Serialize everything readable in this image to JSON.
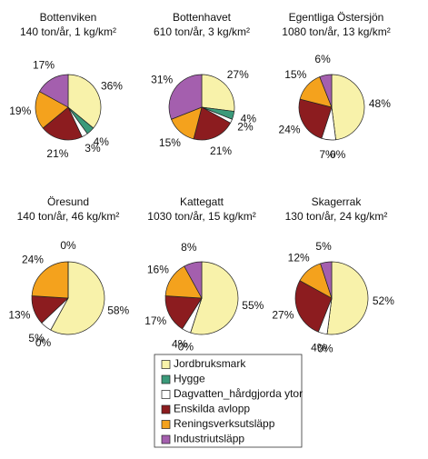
{
  "legend": {
    "categories": [
      "Jordbruksmark",
      "Hygge",
      "Dagvatten_hårdgjorda ytor",
      "Enskilda avlopp",
      "Reningsverksutsläpp",
      "Industriutsläpp"
    ],
    "colors": [
      "#f8f2aa",
      "#3b9a7a",
      "#ffffff",
      "#8c1c1f",
      "#f4a21d",
      "#a45fae"
    ]
  },
  "chart_data": [
    {
      "type": "pie",
      "title": "Bottenviken",
      "subtitle": "140 ton/år, 1 kg/km²",
      "values": [
        36,
        4,
        3,
        21,
        19,
        17
      ],
      "value_labels": [
        "36%",
        "4%",
        "3%",
        "21%",
        "19%",
        "17%"
      ]
    },
    {
      "type": "pie",
      "title": "Bottenhavet",
      "subtitle": "610 ton/år, 3 kg/km²",
      "values": [
        27,
        4,
        2,
        21,
        15,
        31
      ],
      "value_labels": [
        "27%",
        "4%",
        "2%",
        "21%",
        "15%",
        "31%"
      ]
    },
    {
      "type": "pie",
      "title": "Egentliga Östersjön",
      "subtitle": "1080 ton/år, 13 kg/km²",
      "values": [
        48,
        0,
        7,
        24,
        15,
        6
      ],
      "value_labels": [
        "48%",
        "0%",
        "7%",
        "24%",
        "15%",
        "6%"
      ]
    },
    {
      "type": "pie",
      "title": "Öresund",
      "subtitle": "140 ton/år, 46 kg/km²",
      "values": [
        58,
        0,
        5,
        13,
        24,
        0
      ],
      "value_labels": [
        "58%",
        "0%",
        "5%",
        "13%",
        "24%",
        "0%"
      ]
    },
    {
      "type": "pie",
      "title": "Kattegatt",
      "subtitle": "1030 ton/år, 15 kg/km²",
      "values": [
        55,
        0,
        4,
        17,
        16,
        8
      ],
      "value_labels": [
        "55%",
        "0%",
        "4%",
        "17%",
        "16%",
        "8%"
      ]
    },
    {
      "type": "pie",
      "title": "Skagerrak",
      "subtitle": "130 ton/år, 24 kg/km²",
      "values": [
        52,
        0,
        4,
        27,
        12,
        5
      ],
      "value_labels": [
        "52%",
        "0%",
        "4%",
        "27%",
        "12%",
        "5%"
      ]
    }
  ]
}
